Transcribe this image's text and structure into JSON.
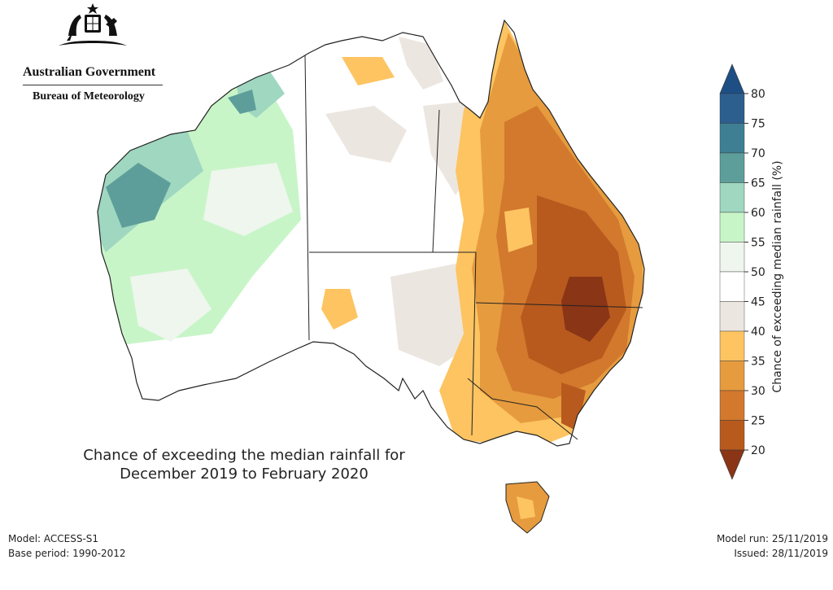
{
  "header": {
    "government": "Australian Government",
    "agency": "Bureau of Meteorology",
    "crest_icon": "commonwealth-coat-of-arms-icon"
  },
  "map": {
    "title_line1": "Chance of exceeding the median rainfall for",
    "title_line2": "December 2019 to February 2020",
    "region": "Australia",
    "pattern": {
      "west": "green (55–70%)",
      "central": "white/grey (40–55%)",
      "east": "orange to dark brown (20–40%)"
    }
  },
  "legend": {
    "title": "Chance of exceeding median rainfall (%)",
    "ticks": [
      "80",
      "75",
      "70",
      "65",
      "60",
      "55",
      "50",
      "45",
      "40",
      "35",
      "30",
      "25",
      "20"
    ],
    "colors": {
      "75_80": "#2c5f8e",
      "70_75": "#3f7f94",
      "65_70": "#5e9e9a",
      "60_65": "#9fd7c0",
      "55_60": "#c8f5c8",
      "50_55": "#eef6ee",
      "45_50": "#ffffff",
      "40_45": "#ece6e1",
      "35_40": "#fdc461",
      "30_35": "#e69b3e",
      "25_30": "#d2792d",
      "20_25": "#b85a1e",
      "below_20": "#8a3516",
      "above_80": "#1d4f85"
    }
  },
  "footer": {
    "model": "Model: ACCESS-S1",
    "base_period": "Base period: 1990-2012",
    "model_run": "Model run: 25/11/2019",
    "issued": "Issued: 28/11/2019"
  }
}
